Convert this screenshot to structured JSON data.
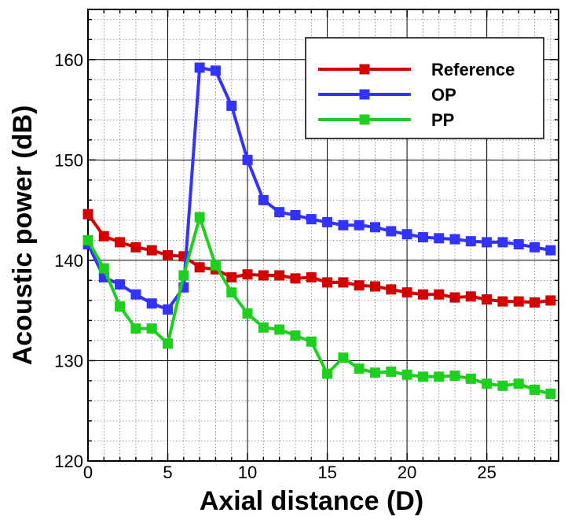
{
  "chart_data": {
    "type": "line",
    "xlabel": "Axial distance (D)",
    "ylabel": "Acoustic power (dB)",
    "xlim": [
      0,
      29.5
    ],
    "ylim": [
      120,
      165
    ],
    "xticks": [
      0,
      5,
      10,
      15,
      20,
      25
    ],
    "yticks": [
      120,
      130,
      140,
      150,
      160
    ],
    "grid": true,
    "legend_position": "top-right",
    "x": [
      0,
      1,
      2,
      3,
      4,
      5,
      6,
      7,
      8,
      9,
      10,
      11,
      12,
      13,
      14,
      15,
      16,
      17,
      18,
      19,
      20,
      21,
      22,
      23,
      24,
      25,
      26,
      27,
      28,
      29
    ],
    "series": [
      {
        "name": "Reference",
        "color": "#d40000",
        "marker": "square",
        "values": [
          144.6,
          142.4,
          141.8,
          141.3,
          141.0,
          140.5,
          140.4,
          139.3,
          139.1,
          138.3,
          138.6,
          138.5,
          138.5,
          138.2,
          138.3,
          137.8,
          137.8,
          137.5,
          137.4,
          137.1,
          136.8,
          136.6,
          136.6,
          136.3,
          136.4,
          136.1,
          135.9,
          135.9,
          135.8,
          136.0
        ]
      },
      {
        "name": "OP",
        "color": "#3333ff",
        "marker": "square",
        "values": [
          141.6,
          138.3,
          137.6,
          136.6,
          135.7,
          135.1,
          137.3,
          159.2,
          158.9,
          155.4,
          150.0,
          146.0,
          144.8,
          144.5,
          144.1,
          143.8,
          143.5,
          143.5,
          143.3,
          142.9,
          142.6,
          142.3,
          142.2,
          142.1,
          141.9,
          141.8,
          141.8,
          141.6,
          141.3,
          141.0
        ]
      },
      {
        "name": "PP",
        "color": "#1ed01e",
        "marker": "square",
        "values": [
          142.0,
          139.2,
          135.4,
          133.2,
          133.2,
          131.7,
          138.5,
          144.3,
          139.5,
          136.8,
          134.7,
          133.3,
          133.1,
          132.5,
          131.9,
          128.7,
          130.3,
          129.2,
          128.8,
          128.9,
          128.6,
          128.4,
          128.4,
          128.5,
          128.2,
          127.7,
          127.5,
          127.7,
          127.1,
          126.7
        ]
      }
    ]
  }
}
